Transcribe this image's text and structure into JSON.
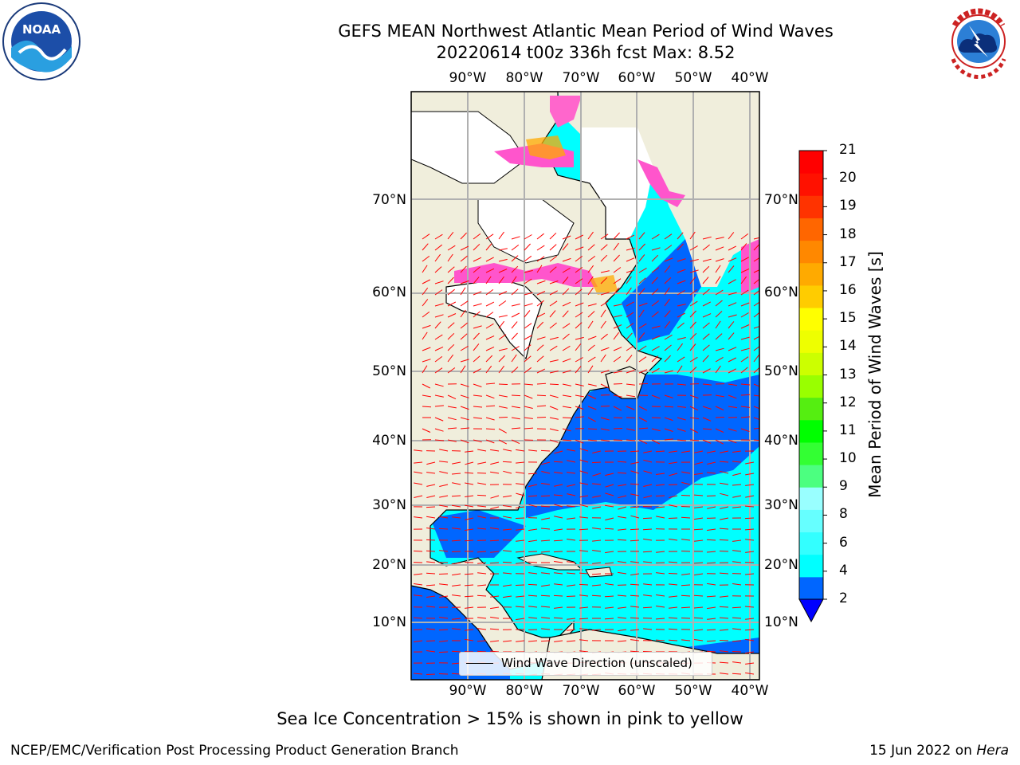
{
  "header": {
    "title_line1": "GEFS MEAN Northwest Atlantic Mean Period of Wind Waves",
    "title_line2": "20220614 t00z 336h fcst   Max: 8.52"
  },
  "logos": {
    "left": "NOAA",
    "left_ring_text": "NATIONAL OCEANIC AND ATMOSPHERIC ADMINISTRATION",
    "left_ring_text_bottom": "U.S. DEPARTMENT OF COMMERCE",
    "right_ring_text": "NATIONAL WEATHER SERVICE"
  },
  "map": {
    "lon_labels": [
      "90°W",
      "80°W",
      "70°W",
      "60°W",
      "50°W",
      "40°W"
    ],
    "lat_labels": [
      "70°N",
      "60°N",
      "50°N",
      "40°N",
      "30°N",
      "20°N",
      "10°N"
    ],
    "legend": "Wind Wave Direction (unscaled)",
    "colors": {
      "land": "#f0eedc",
      "ice": "#ffffff",
      "grid": "#b0b0b0",
      "arrows": "#ff0000"
    }
  },
  "colorbar": {
    "label": "Mean Period of Wind Waves [s]",
    "ticks": [
      "2",
      "4",
      "6",
      "8",
      "9",
      "10",
      "11",
      "12",
      "13",
      "14",
      "15",
      "16",
      "17",
      "18",
      "19",
      "20",
      "21"
    ],
    "colors": [
      "#0066ff",
      "#00ffff",
      "#33ffff",
      "#66ffff",
      "#99ffff",
      "#4cff80",
      "#33ff33",
      "#00ff00",
      "#55ee11",
      "#99ff00",
      "#ccff00",
      "#eeff00",
      "#ffff00",
      "#ffcc00",
      "#ffaa00",
      "#ff8800",
      "#ff6600",
      "#ff3300",
      "#ff1100",
      "#ff0000"
    ],
    "extend_color": "#0000ff"
  },
  "footer": {
    "note": "Sea Ice Concentration > 15% is shown in pink to yellow",
    "credit": "NCEP/EMC/Verification Post Processing Product Generation Branch",
    "date": "15 Jun 2022 on ",
    "machine": "Hera"
  }
}
